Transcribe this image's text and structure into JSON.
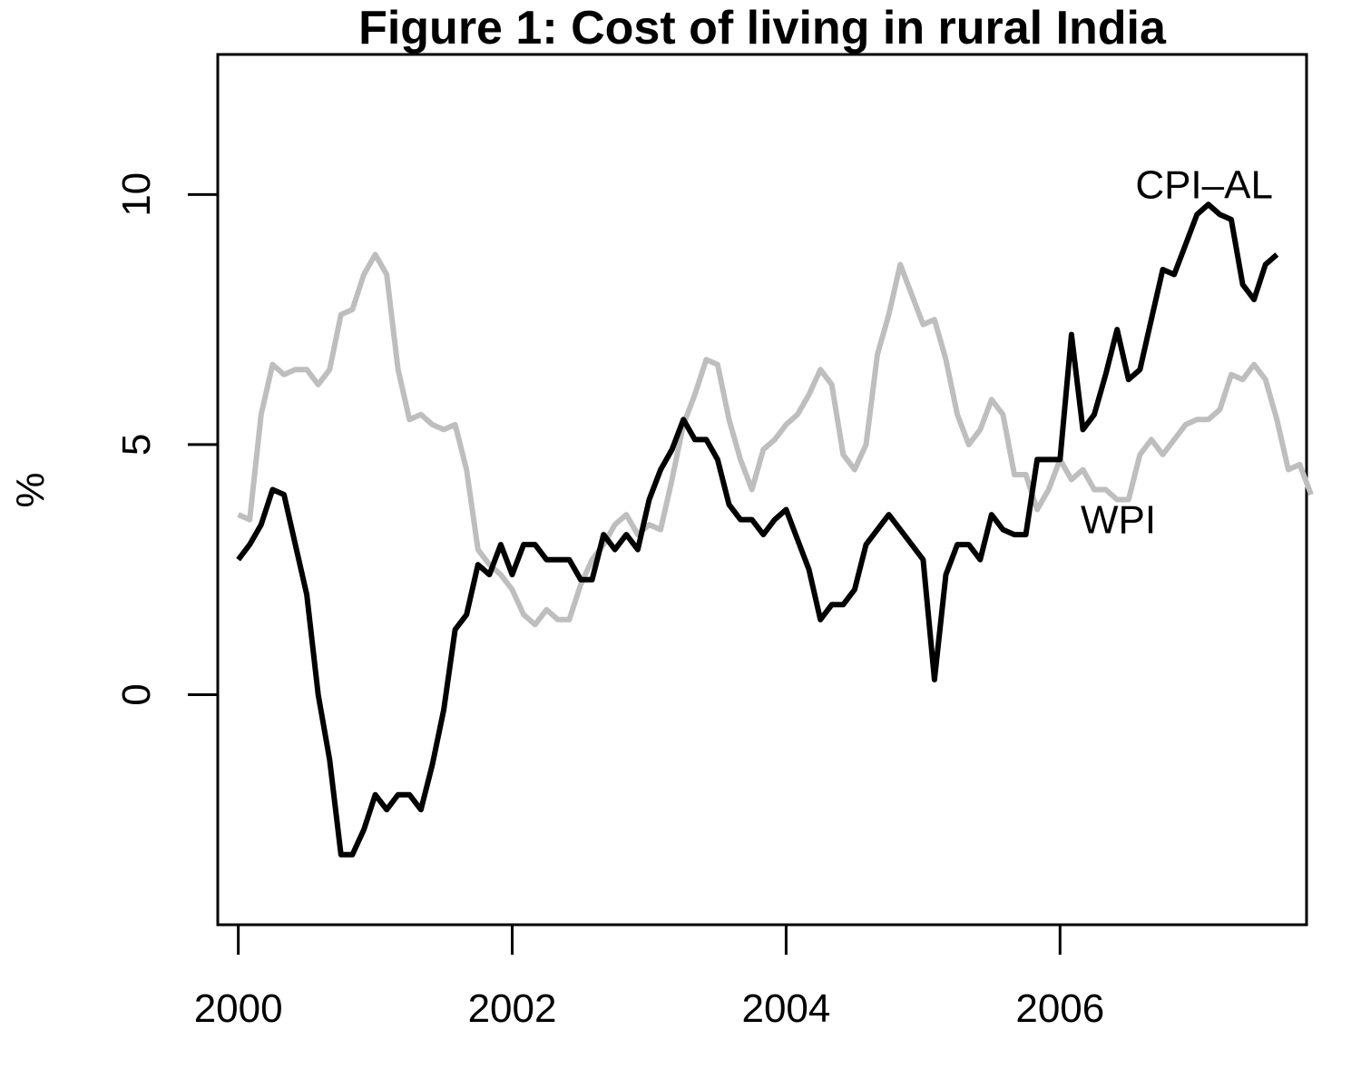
{
  "chart_data": {
    "type": "line",
    "title": "Figure 1: Cost of living in rural India",
    "xlabel": "",
    "ylabel": "%",
    "xlim": [
      1999.85,
      2007.8
    ],
    "ylim": [
      -4.6,
      12.8
    ],
    "x_ticks": [
      2000,
      2002,
      2004,
      2006
    ],
    "y_ticks": [
      0,
      5,
      10
    ],
    "grid": false,
    "legend": "none",
    "x_start": 2000.0,
    "x_step": 0.0833333,
    "series": [
      {
        "name": "WPI",
        "color": "#bebebe",
        "label_x": 2006.15,
        "label_y": 3.5,
        "values": [
          3.6,
          3.5,
          5.6,
          6.6,
          6.4,
          6.5,
          6.5,
          6.2,
          6.5,
          7.6,
          7.7,
          8.4,
          8.8,
          8.4,
          6.5,
          5.5,
          5.6,
          5.4,
          5.3,
          5.4,
          4.5,
          2.9,
          2.6,
          2.4,
          2.1,
          1.6,
          1.4,
          1.7,
          1.5,
          1.5,
          2.2,
          2.7,
          3.0,
          3.4,
          3.6,
          3.2,
          3.4,
          3.3,
          4.3,
          5.4,
          6.0,
          6.7,
          6.6,
          5.5,
          4.7,
          4.1,
          4.9,
          5.1,
          5.4,
          5.6,
          6.0,
          6.5,
          6.2,
          4.8,
          4.5,
          5.0,
          6.8,
          7.6,
          8.6,
          8.0,
          7.4,
          7.5,
          6.7,
          5.6,
          5.0,
          5.3,
          5.9,
          5.6,
          4.4,
          4.4,
          3.7,
          4.1,
          4.7,
          4.3,
          4.5,
          4.1,
          4.1,
          3.9,
          3.9,
          4.8,
          5.1,
          4.8,
          5.1,
          5.4,
          5.5,
          5.5,
          5.7,
          6.4,
          6.3,
          6.6,
          6.3,
          5.5,
          4.5,
          4.6,
          4.0
        ]
      },
      {
        "name": "CPI–AL",
        "color": "#000000",
        "label_x": 2006.55,
        "label_y": 10.2,
        "values": [
          2.7,
          3.0,
          3.4,
          4.1,
          4.0,
          3.0,
          2.0,
          0.0,
          -1.3,
          -3.2,
          -3.2,
          -2.7,
          -2.0,
          -2.3,
          -2.0,
          -2.0,
          -2.3,
          -1.4,
          -0.3,
          1.3,
          1.6,
          2.6,
          2.4,
          3.0,
          2.4,
          3.0,
          3.0,
          2.7,
          2.7,
          2.7,
          2.3,
          2.3,
          3.2,
          2.9,
          3.2,
          2.9,
          3.9,
          4.5,
          4.9,
          5.5,
          5.1,
          5.1,
          4.7,
          3.8,
          3.5,
          3.5,
          3.2,
          3.5,
          3.7,
          3.1,
          2.5,
          1.5,
          1.8,
          1.8,
          2.1,
          3.0,
          3.3,
          3.6,
          3.3,
          3.0,
          2.7,
          0.3,
          2.4,
          3.0,
          3.0,
          2.7,
          3.6,
          3.3,
          3.2,
          3.2,
          4.7,
          4.7,
          4.7,
          7.2,
          5.3,
          5.6,
          6.4,
          7.3,
          6.3,
          6.5,
          7.5,
          8.5,
          8.4,
          9.0,
          9.6,
          9.8,
          9.6,
          9.5,
          8.2,
          7.9,
          8.6,
          8.8
        ]
      }
    ]
  }
}
